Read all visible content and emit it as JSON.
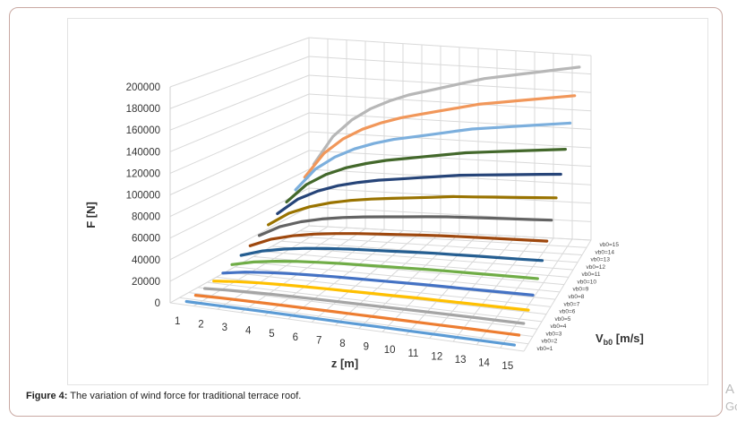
{
  "caption": {
    "label": "Figure 4:",
    "text": " The variation of wind force for traditional terrace roof."
  },
  "cutoff_text": [
    "A",
    "Go"
  ],
  "chart_data": {
    "type": "line",
    "style": "3d-line",
    "title": "",
    "xlabel": "z [m]",
    "ylabel": "F [N]",
    "zlabel_main": "V",
    "zlabel_sub": "b0",
    "zlabel_unit": " [m/s]",
    "ylim": [
      0,
      200000
    ],
    "yticks": [
      "0",
      "20000",
      "40000",
      "60000",
      "80000",
      "100000",
      "120000",
      "140000",
      "160000",
      "180000",
      "200000"
    ],
    "categories": [
      "1",
      "2",
      "3",
      "4",
      "5",
      "6",
      "7",
      "8",
      "9",
      "10",
      "11",
      "12",
      "13",
      "14",
      "15"
    ],
    "grid": true,
    "legend": "depth-axis-right",
    "series": [
      {
        "name": "vb0=1",
        "color": "#5b9bd5",
        "values": [
          300,
          440,
          520,
          580,
          620,
          660,
          680,
          710,
          730,
          760,
          780,
          790,
          810,
          830,
          840
        ]
      },
      {
        "name": "vb0=2",
        "color": "#ed7d31",
        "values": [
          1220,
          1760,
          2090,
          2330,
          2500,
          2630,
          2730,
          2840,
          2940,
          3040,
          3110,
          3170,
          3240,
          3310,
          3380
        ]
      },
      {
        "name": "vb0=3",
        "color": "#a5a5a5",
        "values": [
          2730,
          3950,
          4710,
          5240,
          5620,
          5920,
          6150,
          6380,
          6610,
          6840,
          6990,
          7140,
          7290,
          7440,
          7600
        ]
      },
      {
        "name": "vb0=4",
        "color": "#ffc000",
        "values": [
          4900,
          7000,
          8400,
          9300,
          10000,
          10500,
          10900,
          11300,
          11700,
          12200,
          12400,
          12700,
          13000,
          13200,
          13500
        ]
      },
      {
        "name": "vb0=5",
        "color": "#4472c4",
        "values": [
          7600,
          11000,
          13100,
          14600,
          15600,
          16500,
          17100,
          17700,
          18400,
          19000,
          19400,
          19800,
          20300,
          20700,
          21100
        ]
      },
      {
        "name": "vb0=6",
        "color": "#70ad47",
        "values": [
          10900,
          15800,
          18800,
          21000,
          22500,
          23700,
          24600,
          25500,
          26400,
          27300,
          28000,
          28600,
          29200,
          29800,
          30400
        ]
      },
      {
        "name": "vb0=7",
        "color": "#255e91",
        "values": [
          14900,
          21500,
          25600,
          28500,
          30600,
          32300,
          33500,
          34700,
          36000,
          37200,
          38000,
          38900,
          39700,
          40500,
          41400
        ]
      },
      {
        "name": "vb0=8",
        "color": "#9e480e",
        "values": [
          19400,
          28100,
          33500,
          37300,
          40000,
          42100,
          43800,
          45400,
          47000,
          48600,
          49700,
          50800,
          51900,
          52900,
          54000
        ]
      },
      {
        "name": "vb0=9",
        "color": "#636363",
        "values": [
          24600,
          35500,
          42400,
          47200,
          50600,
          53300,
          55400,
          57400,
          59500,
          61500,
          62900,
          64300,
          65600,
          67000,
          68400
        ]
      },
      {
        "name": "vb0=10",
        "color": "#997300",
        "values": [
          30400,
          43900,
          52300,
          58200,
          62500,
          65800,
          68400,
          70900,
          73400,
          76000,
          77600,
          79300,
          81000,
          82700,
          84400
        ]
      },
      {
        "name": "vb0=11",
        "color": "#264478",
        "values": [
          36800,
          53100,
          63300,
          70500,
          75600,
          79700,
          82700,
          85800,
          88800,
          91900,
          94000,
          96000,
          98000,
          100100,
          102100
        ]
      },
      {
        "name": "vb0=12",
        "color": "#43682b",
        "values": [
          43800,
          63200,
          75400,
          83900,
          89900,
          94800,
          98400,
          102100,
          105700,
          109400,
          111800,
          114200,
          116700,
          119100,
          121500
        ]
      },
      {
        "name": "vb0=13",
        "color": "#7cafdd",
        "values": [
          51300,
          74200,
          88400,
          98400,
          105600,
          111300,
          115500,
          119800,
          124100,
          128400,
          131200,
          134100,
          136900,
          139800,
          142600
        ]
      },
      {
        "name": "vb0=14",
        "color": "#f1975a",
        "values": [
          59600,
          86000,
          102600,
          114100,
          122400,
          129000,
          134000,
          139000,
          143900,
          148900,
          152200,
          155500,
          158800,
          162100,
          165400
        ]
      },
      {
        "name": "vb0=15",
        "color": "#b7b7b7",
        "values": [
          68400,
          98700,
          117700,
          131000,
          140500,
          148100,
          153800,
          159500,
          165200,
          170900,
          174700,
          178500,
          182300,
          186100,
          189900
        ]
      }
    ]
  }
}
